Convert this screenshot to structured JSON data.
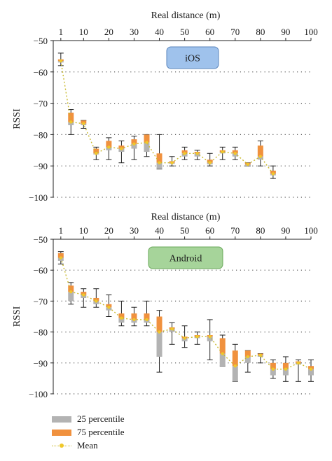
{
  "colors": {
    "p25": "#b3b3b3",
    "p75": "#f0913e",
    "mean_line": "#c9b92c",
    "mean_marker": "#f0c82a",
    "whisker": "#222222",
    "ios_badge_fill": "#9fc2ec",
    "ios_badge_stroke": "#5b86bd",
    "android_badge_fill": "#a6d49a",
    "android_badge_stroke": "#6aa85a"
  },
  "legend": {
    "p25": "25 percentile",
    "p75": "75 percentile",
    "mean": "Mean"
  },
  "chart_data": [
    {
      "type": "box",
      "badge": "iOS",
      "xlabel": "Real distance (m)",
      "ylabel": "RSSI",
      "x_ticks": [
        1,
        10,
        20,
        30,
        40,
        50,
        60,
        70,
        80,
        90,
        100
      ],
      "y_ticks": [
        -50,
        -60,
        -70,
        -80,
        -90,
        -100
      ],
      "ylim": [
        -100,
        -50
      ],
      "xlim": [
        -2,
        100
      ],
      "grid": "dotted horizontal",
      "x": [
        1,
        5,
        10,
        15,
        20,
        25,
        30,
        35,
        40,
        45,
        50,
        55,
        60,
        65,
        70,
        75,
        80,
        85
      ],
      "min": [
        -58,
        -80,
        -78,
        -88,
        -88,
        -89,
        -88,
        -87,
        -91,
        -90,
        -88,
        -88,
        -90,
        -88,
        -88,
        -90,
        -90,
        -94
      ],
      "q1": [
        -57,
        -77,
        -77,
        -86,
        -85,
        -85.5,
        -84.5,
        -85.5,
        -91,
        -89,
        -87,
        -87,
        -89.5,
        -86,
        -87,
        -90,
        -88,
        -93
      ],
      "mean": [
        -56.5,
        -76,
        -76.5,
        -86,
        -84,
        -84.5,
        -83,
        -82.5,
        -89,
        -89,
        -86,
        -86,
        -89,
        -85.5,
        -86,
        -89.5,
        -87,
        -92.5
      ],
      "q3": [
        -56,
        -73,
        -75.5,
        -84.5,
        -82,
        -83.5,
        -81.5,
        -80,
        -86,
        -88.5,
        -85,
        -85.5,
        -88,
        -85,
        -85,
        -89,
        -83.5,
        -91.5
      ],
      "max": [
        -54,
        -72,
        -75.5,
        -84,
        -81,
        -82,
        -80.5,
        -80,
        -80,
        -87,
        -84,
        -85,
        -86,
        -84,
        -84,
        -89,
        -82,
        -90
      ]
    },
    {
      "type": "box",
      "badge": "Android",
      "xlabel": "Real distance (m)",
      "ylabel": "RSSI",
      "x_ticks": [
        1,
        10,
        20,
        30,
        40,
        50,
        60,
        70,
        80,
        90,
        100
      ],
      "y_ticks": [
        -50,
        -60,
        -70,
        -80,
        -90,
        -100
      ],
      "ylim": [
        -100,
        -50
      ],
      "xlim": [
        -2,
        100
      ],
      "grid": "dotted horizontal",
      "x": [
        1,
        5,
        10,
        15,
        20,
        25,
        30,
        35,
        40,
        45,
        50,
        55,
        60,
        65,
        70,
        75,
        80,
        85,
        90,
        95,
        100
      ],
      "min": [
        -58,
        -71,
        -72,
        -72,
        -75,
        -78,
        -78,
        -78,
        -93,
        -84,
        -85,
        -84,
        -89,
        -91,
        -96,
        -93,
        -90,
        -95,
        -96,
        -96,
        -96
      ],
      "q1": [
        -57,
        -70,
        -69,
        -71,
        -73,
        -77,
        -77,
        -77,
        -88,
        -80,
        -83,
        -82,
        -83,
        -91,
        -96,
        -90,
        -88,
        -94,
        -94,
        -90.5,
        -94
      ],
      "mean": [
        -56,
        -67,
        -68,
        -70,
        -72,
        -75.5,
        -76,
        -76,
        -80,
        -79,
        -82,
        -81.5,
        -81.5,
        -87,
        -91,
        -88,
        -87.5,
        -92,
        -92,
        -90,
        -92
      ],
      "q3": [
        -54.5,
        -65,
        -67,
        -69,
        -71,
        -74,
        -74,
        -74,
        -75,
        -78.5,
        -81.5,
        -81,
        -81,
        -82,
        -86,
        -86,
        -87,
        -90,
        -90,
        -89.5,
        -91
      ],
      "max": [
        -54,
        -64,
        -66,
        -66,
        -68,
        -70,
        -72,
        -70,
        -73,
        -77,
        -78,
        -80,
        -76,
        -81,
        -84,
        -86,
        -87,
        -89,
        -88,
        -89,
        -89
      ]
    }
  ]
}
